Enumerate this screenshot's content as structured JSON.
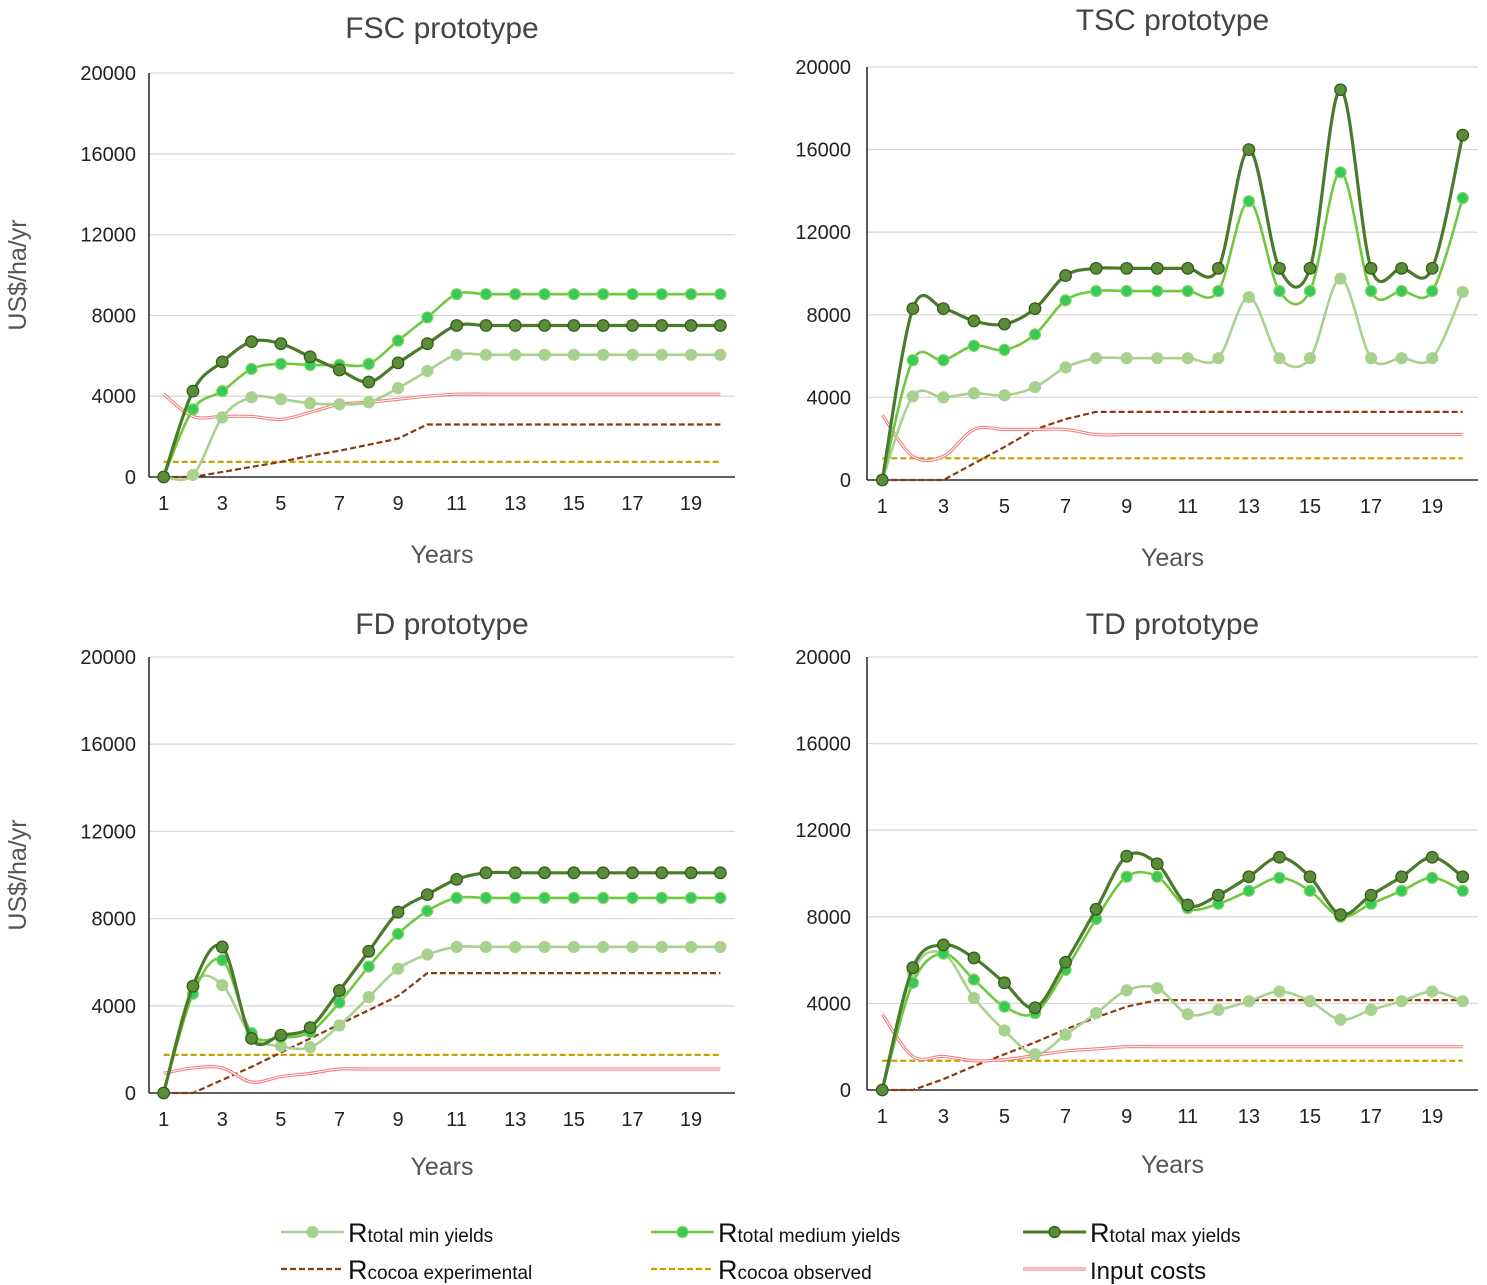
{
  "colors": {
    "min": "#a9d18e",
    "medium": "#70c83f",
    "medium_marker": "#39c85a",
    "max": "#4a7a2a",
    "max_marker": "#5b8c3a",
    "experimental": "#8b3a0f",
    "observed": "#c8a000",
    "input": "#f08080",
    "grid": "#d9d9d9",
    "axis": "#000000"
  },
  "legend": [
    {
      "key": "min",
      "prefix": "R",
      "sub": "total min yields",
      "style": "marker-line"
    },
    {
      "key": "medium",
      "prefix": "R",
      "sub": "total medium yields",
      "style": "marker-line"
    },
    {
      "key": "max",
      "prefix": "R",
      "sub": "total max yields",
      "style": "marker-line"
    },
    {
      "key": "experimental",
      "prefix": "R",
      "sub": "cocoa experimental",
      "style": "dashed"
    },
    {
      "key": "observed",
      "prefix": "R",
      "sub": "cocoa observed",
      "style": "dashed"
    },
    {
      "key": "input",
      "prefix": "",
      "sub": "Input costs",
      "style": "double"
    }
  ],
  "chart_data": [
    {
      "type": "line",
      "title": "FSC prototype",
      "xlabel": "Years",
      "ylabel": "US$/ha/yr",
      "ylim": [
        0,
        20000
      ],
      "yticks": [
        0,
        4000,
        8000,
        12000,
        16000,
        20000
      ],
      "xticks": [
        1,
        3,
        5,
        7,
        9,
        11,
        13,
        15,
        17,
        19
      ],
      "x": [
        1,
        2,
        3,
        4,
        5,
        6,
        7,
        8,
        9,
        10,
        11,
        12,
        13,
        14,
        15,
        16,
        17,
        18,
        19,
        20
      ],
      "series": [
        {
          "key": "min",
          "values": [
            0,
            100,
            2950,
            3950,
            3850,
            3650,
            3600,
            3700,
            4400,
            5250,
            6050,
            6050,
            6050,
            6050,
            6050,
            6050,
            6050,
            6050,
            6050,
            6050
          ]
        },
        {
          "key": "medium",
          "values": [
            0,
            3350,
            4250,
            5350,
            5600,
            5550,
            5550,
            5600,
            6750,
            7900,
            9050,
            9050,
            9050,
            9050,
            9050,
            9050,
            9050,
            9050,
            9050,
            9050
          ]
        },
        {
          "key": "max",
          "values": [
            0,
            4250,
            5700,
            6700,
            6600,
            5950,
            5300,
            4700,
            5650,
            6600,
            7500,
            7500,
            7500,
            7500,
            7500,
            7500,
            7500,
            7500,
            7500,
            7500
          ]
        },
        {
          "key": "experimental",
          "values": [
            0,
            0,
            250,
            500,
            750,
            1050,
            1300,
            1600,
            1900,
            2600,
            2600,
            2600,
            2600,
            2600,
            2600,
            2600,
            2600,
            2600,
            2600,
            2600
          ]
        },
        {
          "key": "observed",
          "values": [
            750,
            750,
            750,
            750,
            750,
            750,
            750,
            750,
            750,
            750,
            750,
            750,
            750,
            750,
            750,
            750,
            750,
            750,
            750,
            750
          ]
        },
        {
          "key": "input",
          "values": [
            4100,
            3000,
            3000,
            3000,
            2850,
            3200,
            3600,
            3700,
            3850,
            4000,
            4100,
            4100,
            4100,
            4100,
            4100,
            4100,
            4100,
            4100,
            4100,
            4100
          ]
        }
      ]
    },
    {
      "type": "line",
      "title": "TSC prototype",
      "xlabel": "Years",
      "ylabel": "",
      "ylim": [
        0,
        20000
      ],
      "yticks": [
        0,
        4000,
        8000,
        12000,
        16000,
        20000
      ],
      "xticks": [
        1,
        3,
        5,
        7,
        9,
        11,
        13,
        15,
        17,
        19
      ],
      "x": [
        1,
        2,
        3,
        4,
        5,
        6,
        7,
        8,
        9,
        10,
        11,
        12,
        13,
        14,
        15,
        16,
        17,
        18,
        19,
        20
      ],
      "series": [
        {
          "key": "min",
          "values": [
            0,
            4050,
            4000,
            4200,
            4100,
            4500,
            5450,
            5900,
            5900,
            5900,
            5900,
            5900,
            8850,
            5900,
            5900,
            9750,
            5900,
            5900,
            5900,
            9100
          ]
        },
        {
          "key": "medium",
          "values": [
            0,
            5800,
            5800,
            6500,
            6300,
            7050,
            8700,
            9150,
            9150,
            9150,
            9150,
            9150,
            13500,
            9150,
            9150,
            14900,
            9150,
            9150,
            9150,
            13650
          ]
        },
        {
          "key": "max",
          "values": [
            0,
            8300,
            8300,
            7700,
            7550,
            8300,
            9900,
            10250,
            10250,
            10250,
            10250,
            10250,
            16000,
            10250,
            10250,
            18900,
            10250,
            10250,
            10250,
            16700
          ]
        },
        {
          "key": "experimental",
          "values": [
            0,
            0,
            0,
            800,
            1600,
            2450,
            2950,
            3300,
            3300,
            3300,
            3300,
            3300,
            3300,
            3300,
            3300,
            3300,
            3300,
            3300,
            3300,
            3300
          ]
        },
        {
          "key": "observed",
          "values": [
            1050,
            1050,
            1050,
            1050,
            1050,
            1050,
            1050,
            1050,
            1050,
            1050,
            1050,
            1050,
            1050,
            1050,
            1050,
            1050,
            1050,
            1050,
            1050,
            1050
          ]
        },
        {
          "key": "input",
          "values": [
            3150,
            1150,
            1150,
            2450,
            2450,
            2450,
            2450,
            2200,
            2200,
            2200,
            2200,
            2200,
            2200,
            2200,
            2200,
            2200,
            2200,
            2200,
            2200,
            2200
          ]
        }
      ]
    },
    {
      "type": "line",
      "title": "FD prototype",
      "xlabel": "Years",
      "ylabel": "US$/ha/yr",
      "ylim": [
        0,
        20000
      ],
      "yticks": [
        0,
        4000,
        8000,
        12000,
        16000,
        20000
      ],
      "xticks": [
        1,
        3,
        5,
        7,
        9,
        11,
        13,
        15,
        17,
        19
      ],
      "x": [
        1,
        2,
        3,
        4,
        5,
        6,
        7,
        8,
        9,
        10,
        11,
        12,
        13,
        14,
        15,
        16,
        17,
        18,
        19,
        20
      ],
      "series": [
        {
          "key": "min",
          "values": [
            0,
            4900,
            4950,
            2600,
            2150,
            2100,
            3100,
            4400,
            5700,
            6350,
            6700,
            6700,
            6700,
            6700,
            6700,
            6700,
            6700,
            6700,
            6700,
            6700
          ]
        },
        {
          "key": "medium",
          "values": [
            0,
            4550,
            6100,
            2750,
            2550,
            2800,
            4150,
            5800,
            7300,
            8350,
            8950,
            8950,
            8950,
            8950,
            8950,
            8950,
            8950,
            8950,
            8950,
            8950
          ]
        },
        {
          "key": "max",
          "values": [
            0,
            4900,
            6700,
            2500,
            2650,
            3000,
            4700,
            6500,
            8300,
            9100,
            9800,
            10100,
            10100,
            10100,
            10100,
            10100,
            10100,
            10100,
            10100,
            10100
          ]
        },
        {
          "key": "experimental",
          "values": [
            0,
            0,
            600,
            1200,
            1850,
            2500,
            3150,
            3800,
            4450,
            5500,
            5500,
            5500,
            5500,
            5500,
            5500,
            5500,
            5500,
            5500,
            5500,
            5500
          ]
        },
        {
          "key": "observed",
          "values": [
            1750,
            1750,
            1750,
            1750,
            1750,
            1750,
            1750,
            1750,
            1750,
            1750,
            1750,
            1750,
            1750,
            1750,
            1750,
            1750,
            1750,
            1750,
            1750,
            1750
          ]
        },
        {
          "key": "input",
          "values": [
            900,
            1150,
            1150,
            500,
            750,
            900,
            1100,
            1100,
            1100,
            1100,
            1100,
            1100,
            1100,
            1100,
            1100,
            1100,
            1100,
            1100,
            1100,
            1100
          ]
        }
      ]
    },
    {
      "type": "line",
      "title": "TD prototype",
      "xlabel": "Years",
      "ylabel": "",
      "ylim": [
        0,
        20000
      ],
      "yticks": [
        0,
        4000,
        8000,
        12000,
        16000,
        20000
      ],
      "xticks": [
        1,
        3,
        5,
        7,
        9,
        11,
        13,
        15,
        17,
        19
      ],
      "x": [
        1,
        2,
        3,
        4,
        5,
        6,
        7,
        8,
        9,
        10,
        11,
        12,
        13,
        14,
        15,
        16,
        17,
        18,
        19,
        20
      ],
      "series": [
        {
          "key": "min",
          "values": [
            0,
            5450,
            6300,
            4250,
            2750,
            1650,
            2550,
            3550,
            4600,
            4700,
            3500,
            3700,
            4100,
            4550,
            4100,
            3250,
            3700,
            4100,
            4550,
            4100
          ]
        },
        {
          "key": "medium",
          "values": [
            0,
            4950,
            6300,
            5100,
            3850,
            3550,
            5550,
            7900,
            9850,
            9850,
            8400,
            8600,
            9200,
            9800,
            9200,
            8000,
            8600,
            9200,
            9800,
            9200
          ]
        },
        {
          "key": "max",
          "values": [
            0,
            5650,
            6700,
            6100,
            4950,
            3800,
            5900,
            8350,
            10800,
            10450,
            8550,
            9000,
            9850,
            10750,
            9850,
            8100,
            9000,
            9850,
            10750,
            9850
          ]
        },
        {
          "key": "experimental",
          "values": [
            0,
            0,
            500,
            1100,
            1650,
            2200,
            2800,
            3350,
            3850,
            4150,
            4150,
            4150,
            4150,
            4150,
            4150,
            4150,
            4150,
            4150,
            4150,
            4150
          ]
        },
        {
          "key": "observed",
          "values": [
            1350,
            1350,
            1350,
            1350,
            1350,
            1350,
            1350,
            1350,
            1350,
            1350,
            1350,
            1350,
            1350,
            1350,
            1350,
            1350,
            1350,
            1350,
            1350,
            1350
          ]
        },
        {
          "key": "input",
          "values": [
            3500,
            1550,
            1550,
            1350,
            1400,
            1600,
            1800,
            1900,
            2000,
            2000,
            2000,
            2000,
            2000,
            2000,
            2000,
            2000,
            2000,
            2000,
            2000,
            2000
          ]
        }
      ]
    }
  ]
}
